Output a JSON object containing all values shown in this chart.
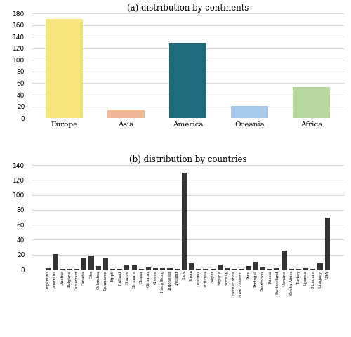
{
  "title_a": "(a) distribution by continents",
  "title_b": "(b) distribution by countries",
  "continents": [
    "Europe",
    "Asia",
    "America",
    "Oceania",
    "Africa"
  ],
  "continent_values": [
    170,
    15,
    129,
    21,
    53
  ],
  "continent_colors": [
    "#f5e47a",
    "#f2b89a",
    "#1e6b7a",
    "#a8c8e8",
    "#b8d8a0"
  ],
  "country_labels": [
    "Argentina",
    "Australia",
    "Austria",
    "Bulgaria",
    "Cameroon",
    "Canada",
    "Cite",
    "Colombia",
    "Danmarca",
    "Egipt",
    "Finland",
    "France",
    "Germany",
    "Ghana",
    "Girbatar",
    "Greece",
    "Hong Kong",
    "Indonesia",
    "Ireland",
    "Italy",
    "Japan",
    "Lesotho",
    "Lituania",
    "Nepal",
    "Nigeria",
    "Norway",
    "Netherlands",
    "New Zealand",
    "Peru",
    "Portugal",
    "Puertorico",
    "Russia",
    "Switzerland",
    "Ukraine",
    "South Africa",
    "Turkey",
    "Uganda",
    "Hungary",
    "Uruguay",
    "USA"
  ],
  "country_values": [
    2,
    21,
    1,
    1,
    1,
    15,
    19,
    5,
    15,
    1,
    1,
    6,
    6,
    1,
    3,
    2,
    2,
    2,
    1,
    130,
    8,
    1,
    1,
    1,
    7,
    2,
    1,
    1,
    5,
    10,
    3,
    1,
    2,
    25,
    1,
    1,
    2,
    1,
    8,
    70
  ],
  "country_color": "#333333",
  "bg_color": "#ffffff",
  "grid_color": "#cccccc",
  "ylim_a": [
    0,
    180
  ],
  "ylim_b": [
    0,
    140
  ],
  "yticks_a": [
    0,
    20,
    40,
    60,
    80,
    100,
    120,
    140,
    160,
    180
  ],
  "yticks_b": [
    0,
    20,
    40,
    60,
    80,
    100,
    120,
    140
  ]
}
